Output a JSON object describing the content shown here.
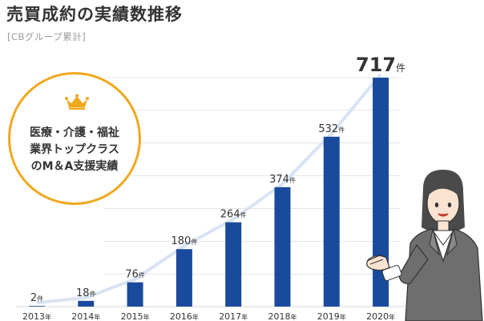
{
  "header": {
    "title": "売買成約の実績数推移",
    "subtitle": "[CBグループ累計]"
  },
  "badge": {
    "lines": [
      "医療・介護・福祉",
      "業界トップクラス",
      "のM＆A支援実績"
    ],
    "color": "#f0a81f",
    "icon": "crown-icon"
  },
  "person": {
    "icon": "businesswoman-illustration"
  },
  "colors": {
    "bar": "#1a4a9c",
    "trend": "#d8e3f3",
    "text": "#333333",
    "gridline": "#d6d6d6"
  },
  "chart_data": {
    "type": "bar",
    "categories": [
      "2013年",
      "2014年",
      "2015年",
      "2016年",
      "2017年",
      "2018年",
      "2019年",
      "2020年"
    ],
    "values": [
      2,
      18,
      76,
      180,
      264,
      374,
      532,
      717
    ],
    "unit": "件",
    "value_labels": [
      "2",
      "18",
      "76",
      "180",
      "264",
      "374",
      "532",
      "717"
    ],
    "ylim": [
      0,
      717
    ],
    "grid": true,
    "trend_line": true
  }
}
